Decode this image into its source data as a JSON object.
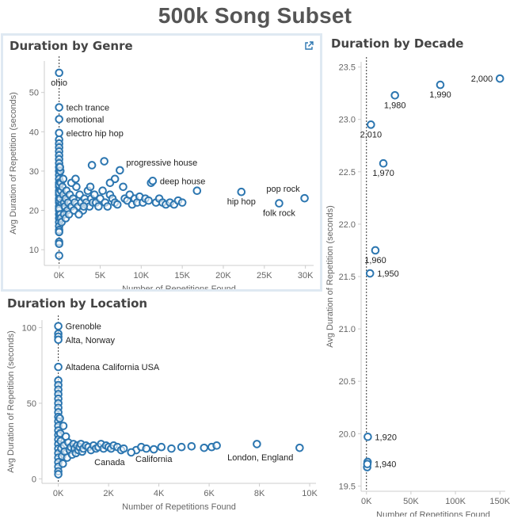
{
  "dashboard_title": "500k Song Subset",
  "colors": {
    "mark": "#2c76b0",
    "axis": "#cccccc",
    "refline": "#333333"
  },
  "icons": {
    "genre_panel": "popout-icon"
  },
  "chart_data": [
    {
      "id": "genre",
      "type": "scatter",
      "title": "Duration by Genre",
      "xlabel": "Number of Repetitions Found",
      "ylabel": "Avg Duration of Repetition (seconds)",
      "xlim": [
        -1800,
        31000
      ],
      "ylim": [
        6,
        58
      ],
      "xticks": [
        0,
        5000,
        10000,
        15000,
        20000,
        25000,
        30000
      ],
      "xtick_labels": [
        "0K",
        "5K",
        "10K",
        "15K",
        "20K",
        "25K",
        "30K"
      ],
      "yticks": [
        10,
        20,
        30,
        40,
        50
      ],
      "ytick_labels": [
        "10",
        "20",
        "30",
        "40",
        "50"
      ],
      "reference_line_x": 0,
      "labeled_points": [
        {
          "x": 0,
          "y": 55.0,
          "label": "ohio",
          "pos": "below"
        },
        {
          "x": 0,
          "y": 46.2,
          "label": "tech trance",
          "pos": "right"
        },
        {
          "x": 0,
          "y": 43.2,
          "label": "emotional",
          "pos": "right"
        },
        {
          "x": 0,
          "y": 39.7,
          "label": "electro hip hop",
          "pos": "right"
        },
        {
          "x": 7400,
          "y": 30.2,
          "label": "progressive house",
          "pos": "above-right"
        },
        {
          "x": 11400,
          "y": 27.5,
          "label": "deep house",
          "pos": "right"
        },
        {
          "x": 22200,
          "y": 24.7,
          "label": "hip hop",
          "pos": "below"
        },
        {
          "x": 26800,
          "y": 21.8,
          "label": "folk rock",
          "pos": "below"
        },
        {
          "x": 29900,
          "y": 23.1,
          "label": "pop rock",
          "pos": "above-left"
        }
      ],
      "points": [
        [
          0,
          38
        ],
        [
          0,
          37
        ],
        [
          0,
          36
        ],
        [
          0,
          35
        ],
        [
          0,
          34
        ],
        [
          0,
          33
        ],
        [
          0,
          32
        ],
        [
          0,
          31
        ],
        [
          0,
          30
        ],
        [
          0,
          29
        ],
        [
          0,
          28
        ],
        [
          0,
          27
        ],
        [
          0,
          26
        ],
        [
          0,
          25
        ],
        [
          0,
          24
        ],
        [
          0,
          23
        ],
        [
          0,
          22
        ],
        [
          0,
          21
        ],
        [
          0,
          20
        ],
        [
          0,
          19
        ],
        [
          0,
          18
        ],
        [
          0,
          17
        ],
        [
          0,
          16
        ],
        [
          0,
          15
        ],
        [
          0,
          14.5
        ],
        [
          0,
          12
        ],
        [
          0,
          11.5
        ],
        [
          0,
          8.5
        ],
        [
          0,
          26.5
        ],
        [
          0,
          24.5
        ],
        [
          0,
          22.5
        ],
        [
          0,
          20.5
        ],
        [
          150,
          30
        ],
        [
          200,
          27
        ],
        [
          250,
          25
        ],
        [
          300,
          22
        ],
        [
          150,
          19
        ],
        [
          200,
          18
        ],
        [
          300,
          17
        ],
        [
          100,
          31
        ],
        [
          120,
          23
        ],
        [
          400,
          26
        ],
        [
          500,
          24
        ],
        [
          600,
          22
        ],
        [
          700,
          21
        ],
        [
          800,
          23
        ],
        [
          900,
          25
        ],
        [
          1000,
          20
        ],
        [
          500,
          28
        ],
        [
          600,
          19
        ],
        [
          1100,
          22
        ],
        [
          1300,
          24
        ],
        [
          1500,
          21
        ],
        [
          1700,
          23
        ],
        [
          1900,
          22
        ],
        [
          2100,
          26
        ],
        [
          2300,
          21
        ],
        [
          2500,
          24
        ],
        [
          2700,
          22
        ],
        [
          2900,
          20
        ],
        [
          3100,
          23
        ],
        [
          3300,
          22
        ],
        [
          3500,
          25
        ],
        [
          3700,
          21
        ],
        [
          3900,
          23
        ],
        [
          4100,
          22
        ],
        [
          4300,
          24
        ],
        [
          1500,
          27
        ],
        [
          2000,
          28
        ],
        [
          800,
          18
        ],
        [
          1200,
          19
        ],
        [
          1800,
          20
        ],
        [
          2400,
          19
        ],
        [
          3000,
          21
        ],
        [
          3800,
          26
        ],
        [
          4000,
          31.5
        ],
        [
          4500,
          22
        ],
        [
          4800,
          21
        ],
        [
          5000,
          23
        ],
        [
          5300,
          25
        ],
        [
          5600,
          22
        ],
        [
          5900,
          21
        ],
        [
          6200,
          24
        ],
        [
          6500,
          23
        ],
        [
          6800,
          22
        ],
        [
          7100,
          21.5
        ],
        [
          5500,
          32.5
        ],
        [
          6800,
          28
        ],
        [
          6200,
          27
        ],
        [
          7800,
          26
        ],
        [
          8000,
          23
        ],
        [
          8300,
          22.5
        ],
        [
          8600,
          24
        ],
        [
          8900,
          21.5
        ],
        [
          9200,
          23
        ],
        [
          9500,
          22
        ],
        [
          9800,
          23.5
        ],
        [
          10200,
          22
        ],
        [
          10500,
          23
        ],
        [
          10900,
          22.5
        ],
        [
          11200,
          27
        ],
        [
          11800,
          22
        ],
        [
          12200,
          23
        ],
        [
          12600,
          22
        ],
        [
          13000,
          21.5
        ],
        [
          13500,
          22
        ],
        [
          14000,
          21.5
        ],
        [
          14500,
          22.5
        ],
        [
          15000,
          22
        ],
        [
          16800,
          25
        ]
      ]
    },
    {
      "id": "location",
      "type": "scatter",
      "title": "Duration by Location",
      "xlabel": "Number of Repetitions Found",
      "ylabel": "Avg Duration of Repetition (seconds)",
      "xlim": [
        -650,
        10250
      ],
      "ylim": [
        -3,
        105
      ],
      "xticks": [
        0,
        2000,
        4000,
        6000,
        8000,
        10000
      ],
      "xtick_labels": [
        "0K",
        "2K",
        "4K",
        "6K",
        "8K",
        "10K"
      ],
      "yticks": [
        0,
        50,
        100
      ],
      "ytick_labels": [
        "0",
        "50",
        "100"
      ],
      "reference_line_x": 0,
      "labeled_points": [
        {
          "x": 0,
          "y": 101,
          "label": "Grenoble",
          "pos": "right"
        },
        {
          "x": 0,
          "y": 92,
          "label": "Alta, Norway",
          "pos": "right"
        },
        {
          "x": 0,
          "y": 74,
          "label": "Altadena California USA",
          "pos": "right"
        },
        {
          "x": 2900,
          "y": 17.5,
          "label": "Canada",
          "pos": "below-left"
        },
        {
          "x": 3800,
          "y": 19.5,
          "label": "California",
          "pos": "below"
        },
        {
          "x": 9600,
          "y": 20.5,
          "label": "London, England",
          "pos": "below-left"
        }
      ],
      "points": [
        [
          0,
          96
        ],
        [
          0,
          94
        ],
        [
          0,
          65
        ],
        [
          0,
          62
        ],
        [
          0,
          59
        ],
        [
          0,
          56
        ],
        [
          0,
          53
        ],
        [
          0,
          50
        ],
        [
          0,
          47
        ],
        [
          0,
          44
        ],
        [
          0,
          41
        ],
        [
          0,
          38
        ],
        [
          0,
          35
        ],
        [
          0,
          32
        ],
        [
          0,
          29
        ],
        [
          0,
          26
        ],
        [
          0,
          23
        ],
        [
          0,
          20
        ],
        [
          0,
          17
        ],
        [
          0,
          14
        ],
        [
          0,
          11
        ],
        [
          0,
          8
        ],
        [
          0,
          5
        ],
        [
          0,
          3
        ],
        [
          60,
          40
        ],
        [
          80,
          30
        ],
        [
          100,
          25
        ],
        [
          120,
          20
        ],
        [
          150,
          15
        ],
        [
          180,
          10
        ],
        [
          200,
          35
        ],
        [
          220,
          22
        ],
        [
          250,
          18
        ],
        [
          300,
          28
        ],
        [
          350,
          14
        ],
        [
          400,
          24
        ],
        [
          450,
          19
        ],
        [
          500,
          21
        ],
        [
          550,
          16
        ],
        [
          600,
          23
        ],
        [
          650,
          20
        ],
        [
          700,
          17
        ],
        [
          750,
          22
        ],
        [
          800,
          19
        ],
        [
          850,
          21
        ],
        [
          900,
          23
        ],
        [
          950,
          18
        ],
        [
          1000,
          20
        ],
        [
          1100,
          22
        ],
        [
          1200,
          21
        ],
        [
          1300,
          19
        ],
        [
          1400,
          22
        ],
        [
          1500,
          20
        ],
        [
          1600,
          21
        ],
        [
          1700,
          23
        ],
        [
          1800,
          20
        ],
        [
          1900,
          22
        ],
        [
          2000,
          21
        ],
        [
          2100,
          20
        ],
        [
          2200,
          22
        ],
        [
          2350,
          21
        ],
        [
          2500,
          19
        ],
        [
          2600,
          20
        ],
        [
          3100,
          19
        ],
        [
          3300,
          21
        ],
        [
          3500,
          20
        ],
        [
          4100,
          21
        ],
        [
          4500,
          20
        ],
        [
          4900,
          21
        ],
        [
          5300,
          21.5
        ],
        [
          5800,
          20.5
        ],
        [
          6100,
          21
        ],
        [
          6300,
          22
        ],
        [
          7900,
          23
        ]
      ]
    },
    {
      "id": "decade",
      "type": "scatter",
      "title": "Duration by Decade",
      "xlabel": "Number of Repetitions Found",
      "ylabel": "Avg Duration of Repetition (seconds)",
      "xlim": [
        -6000,
        156000
      ],
      "ylim": [
        19.45,
        23.55
      ],
      "xticks": [
        0,
        50000,
        100000,
        150000
      ],
      "xtick_labels": [
        "0K",
        "50K",
        "100K",
        "150K"
      ],
      "yticks": [
        19.5,
        20.0,
        20.5,
        21.0,
        21.5,
        22.0,
        22.5,
        23.0,
        23.5
      ],
      "ytick_labels": [
        "19.5",
        "20.0",
        "20.5",
        "21.0",
        "21.5",
        "22.0",
        "22.5",
        "23.0",
        "23.5"
      ],
      "reference_line_x": 0,
      "labeled_points": [
        {
          "x": 150000,
          "y": 23.39,
          "label": "2,000",
          "pos": "left"
        },
        {
          "x": 83000,
          "y": 23.33,
          "label": "1,990",
          "pos": "below"
        },
        {
          "x": 32000,
          "y": 23.23,
          "label": "1,980",
          "pos": "below"
        },
        {
          "x": 5000,
          "y": 22.95,
          "label": "2,010",
          "pos": "below"
        },
        {
          "x": 19000,
          "y": 22.58,
          "label": "1,970",
          "pos": "below"
        },
        {
          "x": 10000,
          "y": 21.75,
          "label": "1,960",
          "pos": "below"
        },
        {
          "x": 4000,
          "y": 21.53,
          "label": "1,950",
          "pos": "right"
        },
        {
          "x": 1500,
          "y": 19.97,
          "label": "1,920",
          "pos": "right"
        },
        {
          "x": 1000,
          "y": 19.71,
          "label": "1,940",
          "pos": "right"
        }
      ],
      "points": [
        [
          800,
          19.68
        ],
        [
          1300,
          19.73
        ]
      ]
    }
  ]
}
